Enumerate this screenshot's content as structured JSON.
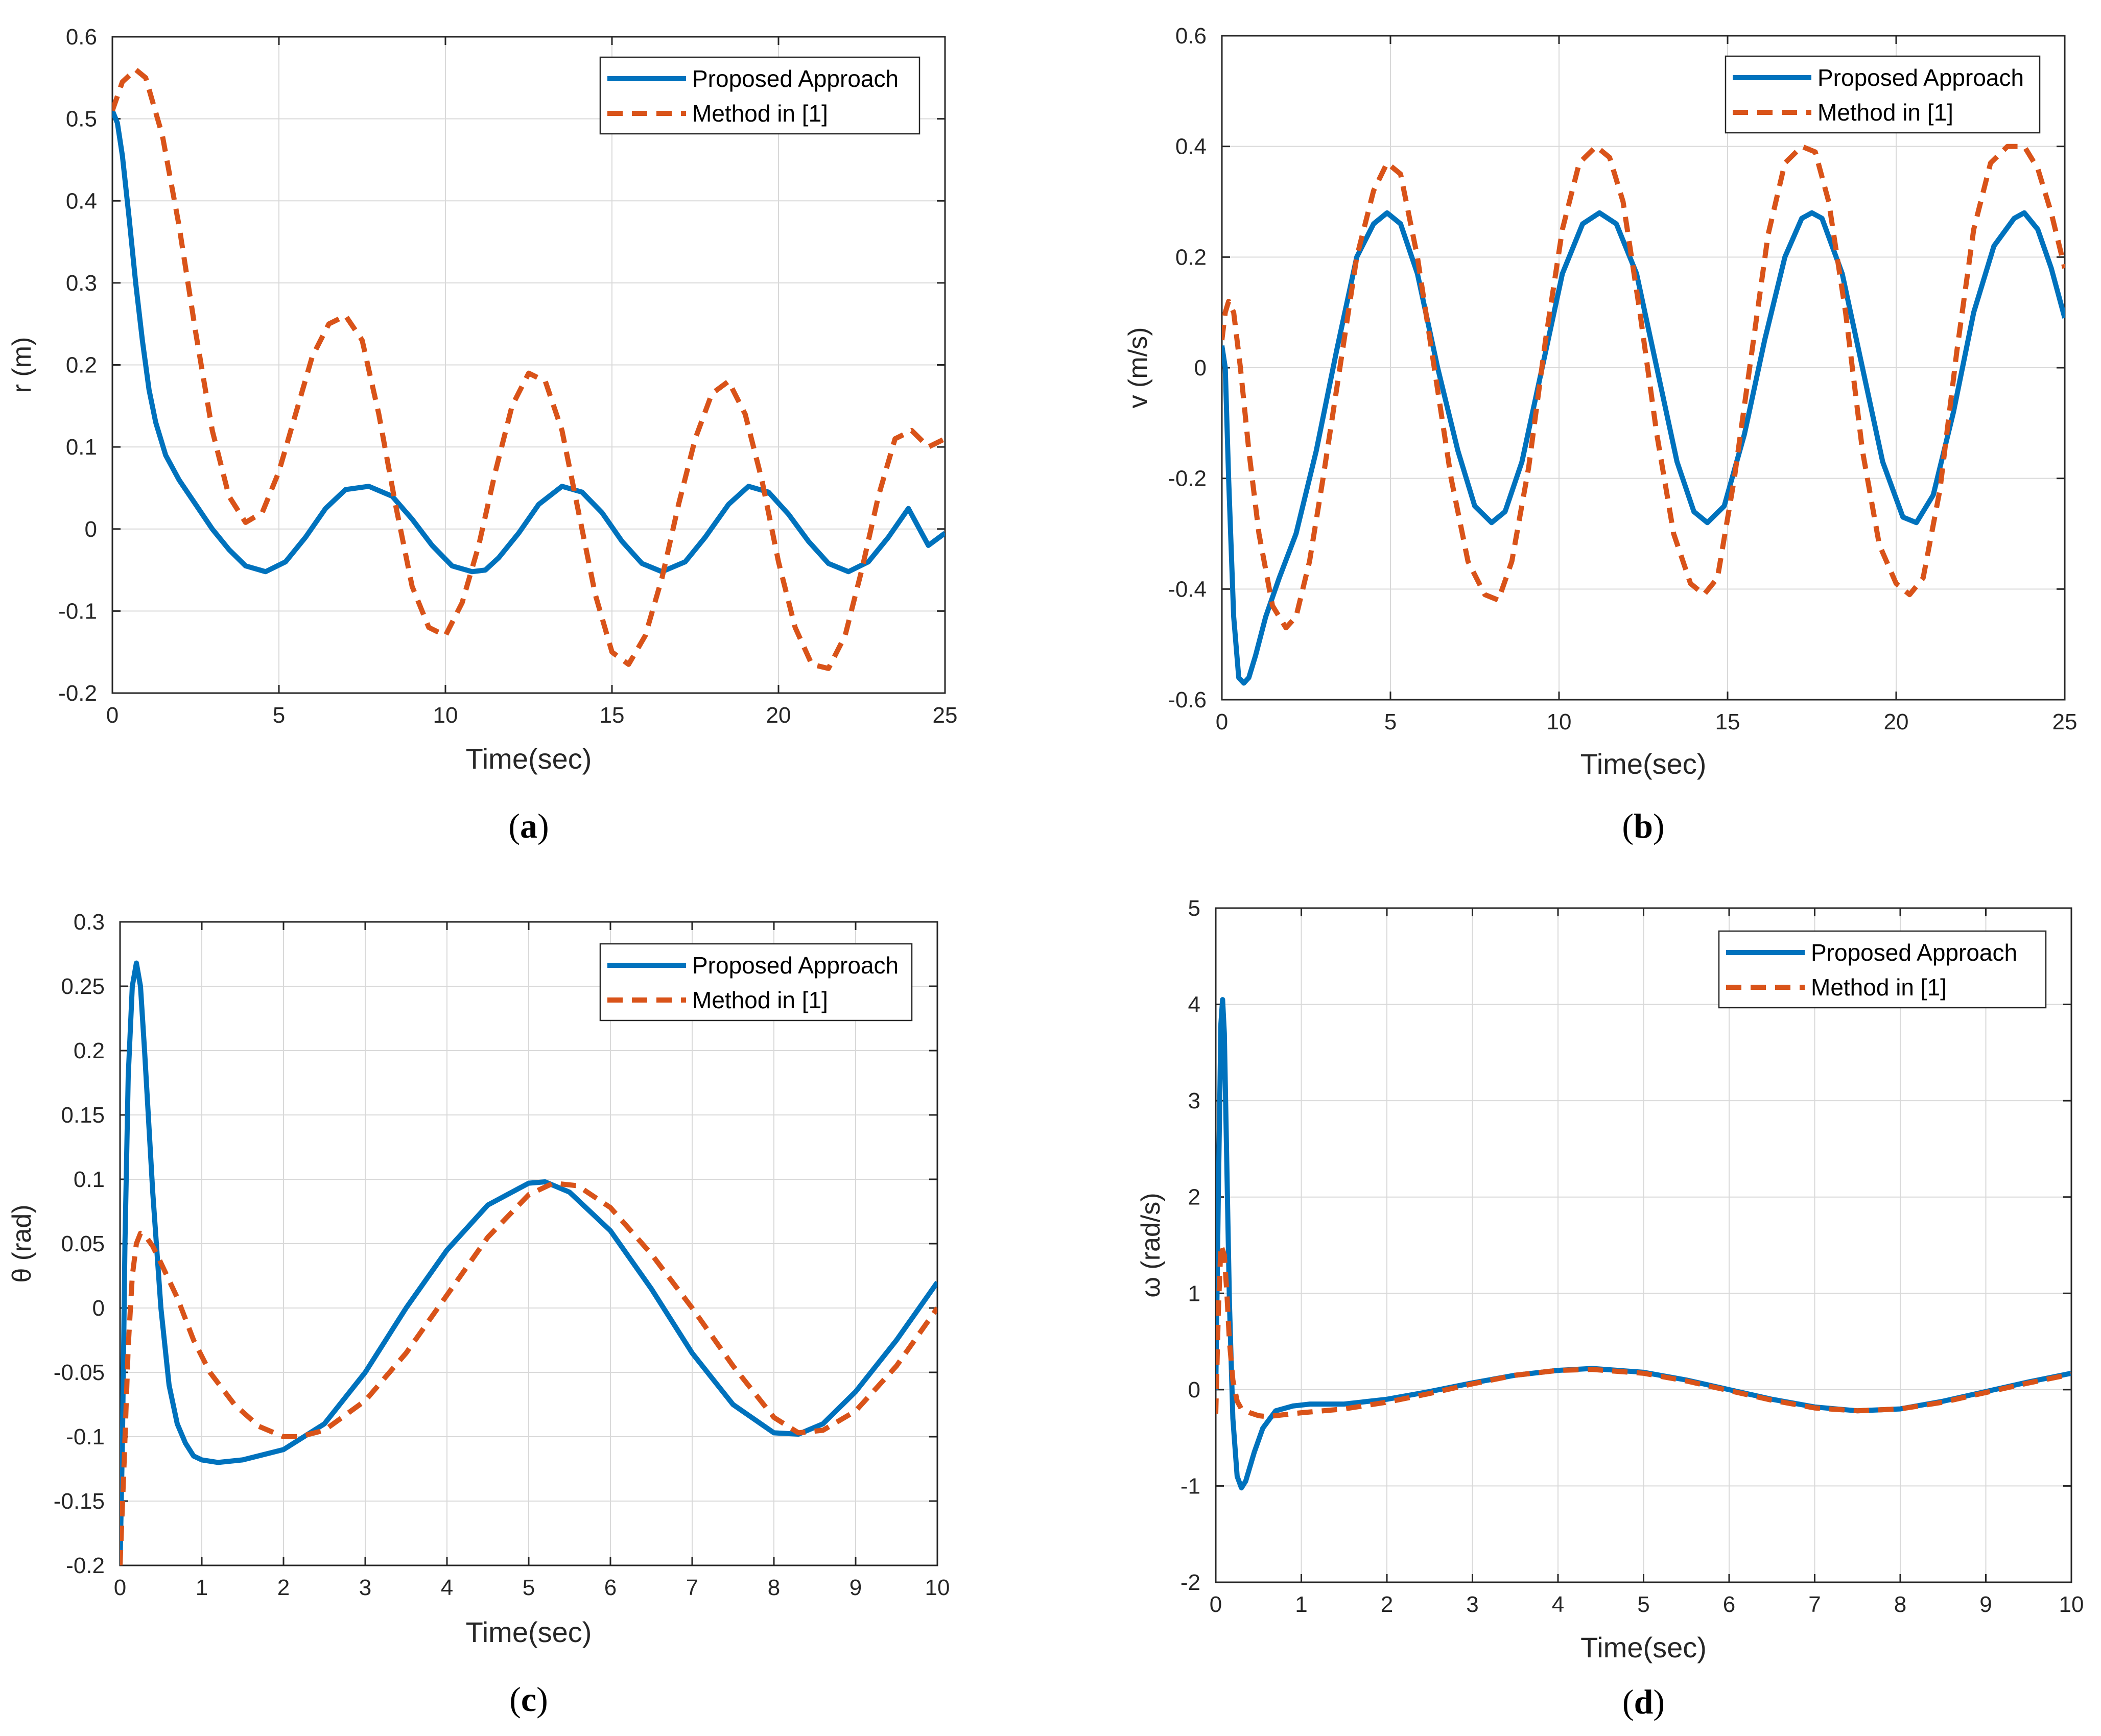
{
  "colors": {
    "proposed": "#0072BD",
    "method": "#D95319",
    "grid": "#d9d9d9",
    "axis": "#262626",
    "text": "#262626",
    "legend_border": "#262626"
  },
  "chart_data": [
    {
      "id": "a",
      "type": "line",
      "caption": "a",
      "xlabel": "Time(sec)",
      "ylabel": "r (m)",
      "xlim": [
        0,
        25
      ],
      "ylim": [
        -0.2,
        0.6
      ],
      "xticks": [
        0,
        5,
        10,
        15,
        20,
        25
      ],
      "xtick_labels": [
        "0",
        "5",
        "10",
        "15",
        "20",
        "25"
      ],
      "yticks": [
        -0.2,
        -0.1,
        0,
        0.1,
        0.2,
        0.3,
        0.4,
        0.5,
        0.6
      ],
      "ytick_labels": [
        "-0.2",
        "-0.1",
        "0",
        "0.1",
        "0.2",
        "0.3",
        "0.4",
        "0.5",
        "0.6"
      ],
      "grid": true,
      "legend": "top-right",
      "series": [
        {
          "name": "Proposed Approach",
          "style": "solid",
          "x": [
            0,
            0.15,
            0.3,
            0.5,
            0.7,
            0.9,
            1.1,
            1.3,
            1.6,
            2.0,
            2.5,
            3.0,
            3.5,
            4.0,
            4.6,
            5.2,
            5.8,
            6.4,
            7.0,
            7.7,
            8.4,
            9.0,
            9.6,
            10.2,
            10.8,
            11.2,
            11.6,
            12.2,
            12.8,
            13.5,
            14.1,
            14.7,
            15.3,
            15.9,
            16.5,
            17.2,
            17.8,
            18.5,
            19.1,
            19.7,
            20.3,
            20.9,
            21.5,
            22.1,
            22.7,
            23.3,
            23.9,
            24.5,
            25.0
          ],
          "y": [
            0.51,
            0.495,
            0.455,
            0.38,
            0.3,
            0.23,
            0.17,
            0.13,
            0.09,
            0.06,
            0.03,
            0.0,
            -0.025,
            -0.045,
            -0.052,
            -0.04,
            -0.01,
            0.025,
            0.048,
            0.052,
            0.04,
            0.012,
            -0.02,
            -0.045,
            -0.052,
            -0.05,
            -0.035,
            -0.005,
            0.03,
            0.052,
            0.045,
            0.02,
            -0.015,
            -0.042,
            -0.052,
            -0.04,
            -0.01,
            0.03,
            0.052,
            0.045,
            0.018,
            -0.015,
            -0.042,
            -0.052,
            -0.04,
            -0.01,
            0.025,
            -0.02,
            -0.005
          ]
        },
        {
          "name": "Method in [1]",
          "style": "dashed",
          "x": [
            0,
            0.3,
            0.7,
            1.0,
            1.5,
            2.0,
            2.5,
            3.0,
            3.5,
            4.0,
            4.5,
            5.0,
            5.5,
            6.0,
            6.5,
            7.0,
            7.5,
            8.0,
            8.5,
            9.0,
            9.5,
            10.0,
            10.5,
            11.0,
            11.5,
            12.0,
            12.5,
            13.0,
            13.5,
            14.0,
            14.5,
            15.0,
            15.5,
            16.0,
            16.5,
            17.0,
            17.5,
            18.0,
            18.5,
            19.0,
            19.5,
            20.0,
            20.5,
            21.0,
            21.5,
            22.0,
            22.5,
            23.0,
            23.5,
            24.0,
            24.5,
            25.0
          ],
          "y": [
            0.51,
            0.545,
            0.56,
            0.55,
            0.48,
            0.37,
            0.24,
            0.12,
            0.04,
            0.008,
            0.02,
            0.07,
            0.14,
            0.21,
            0.25,
            0.26,
            0.23,
            0.14,
            0.03,
            -0.07,
            -0.12,
            -0.13,
            -0.09,
            -0.02,
            0.07,
            0.15,
            0.19,
            0.18,
            0.12,
            0.02,
            -0.08,
            -0.15,
            -0.165,
            -0.13,
            -0.06,
            0.03,
            0.11,
            0.165,
            0.18,
            0.14,
            0.06,
            -0.04,
            -0.12,
            -0.165,
            -0.17,
            -0.13,
            -0.05,
            0.04,
            0.11,
            0.12,
            0.1,
            0.11
          ]
        }
      ]
    },
    {
      "id": "b",
      "type": "line",
      "caption": "b",
      "xlabel": "Time(sec)",
      "ylabel": "v (m/s)",
      "xlim": [
        0,
        25
      ],
      "ylim": [
        -0.6,
        0.6
      ],
      "xticks": [
        0,
        5,
        10,
        15,
        20,
        25
      ],
      "xtick_labels": [
        "0",
        "5",
        "10",
        "15",
        "20",
        "25"
      ],
      "yticks": [
        -0.6,
        -0.4,
        -0.2,
        0,
        0.2,
        0.4,
        0.6
      ],
      "ytick_labels": [
        "-0.6",
        "-0.4",
        "-0.2",
        "0",
        "0.2",
        "0.4",
        "0.6"
      ],
      "grid": true,
      "legend": "top-right",
      "series": [
        {
          "name": "Proposed Approach",
          "style": "solid",
          "x": [
            0,
            0.1,
            0.2,
            0.35,
            0.5,
            0.65,
            0.8,
            1.0,
            1.3,
            1.7,
            2.2,
            2.8,
            3.4,
            4.0,
            4.5,
            4.9,
            5.3,
            5.8,
            6.4,
            7.0,
            7.5,
            8.0,
            8.4,
            8.9,
            9.5,
            10.1,
            10.7,
            11.2,
            11.7,
            12.3,
            12.9,
            13.5,
            14.0,
            14.4,
            14.9,
            15.5,
            16.1,
            16.7,
            17.2,
            17.5,
            17.8,
            18.4,
            19.0,
            19.6,
            20.2,
            20.6,
            21.1,
            21.7,
            22.3,
            22.9,
            23.5,
            23.8,
            24.2,
            24.6,
            25.0
          ],
          "y": [
            0.04,
            0.0,
            -0.2,
            -0.45,
            -0.56,
            -0.57,
            -0.56,
            -0.52,
            -0.45,
            -0.38,
            -0.3,
            -0.15,
            0.03,
            0.2,
            0.26,
            0.28,
            0.26,
            0.17,
            0.0,
            -0.15,
            -0.25,
            -0.28,
            -0.26,
            -0.17,
            0.0,
            0.17,
            0.26,
            0.28,
            0.26,
            0.17,
            0.0,
            -0.17,
            -0.26,
            -0.28,
            -0.25,
            -0.12,
            0.05,
            0.2,
            0.27,
            0.28,
            0.27,
            0.17,
            0.0,
            -0.17,
            -0.27,
            -0.28,
            -0.23,
            -0.08,
            0.1,
            0.22,
            0.27,
            0.28,
            0.25,
            0.18,
            0.09
          ]
        },
        {
          "name": "Method in [1]",
          "style": "dashed",
          "x": [
            0,
            0.1,
            0.2,
            0.35,
            0.55,
            0.8,
            1.1,
            1.5,
            1.9,
            2.2,
            2.6,
            3.0,
            3.5,
            4.0,
            4.5,
            4.9,
            5.3,
            5.8,
            6.3,
            6.8,
            7.3,
            7.8,
            8.2,
            8.6,
            9.1,
            9.6,
            10.1,
            10.6,
            11.1,
            11.5,
            11.9,
            12.4,
            12.9,
            13.4,
            13.9,
            14.3,
            14.7,
            15.2,
            15.7,
            16.2,
            16.7,
            17.2,
            17.6,
            18.0,
            18.5,
            19.0,
            19.5,
            20.0,
            20.4,
            20.8,
            21.3,
            21.8,
            22.3,
            22.8,
            23.3,
            23.8,
            24.2,
            24.6,
            25.0
          ],
          "y": [
            0.05,
            0.1,
            0.12,
            0.1,
            0.0,
            -0.15,
            -0.3,
            -0.43,
            -0.47,
            -0.45,
            -0.35,
            -0.2,
            0.0,
            0.2,
            0.32,
            0.37,
            0.35,
            0.2,
            0.0,
            -0.2,
            -0.35,
            -0.41,
            -0.42,
            -0.35,
            -0.18,
            0.05,
            0.25,
            0.37,
            0.4,
            0.38,
            0.3,
            0.1,
            -0.12,
            -0.3,
            -0.39,
            -0.41,
            -0.38,
            -0.2,
            0.02,
            0.24,
            0.37,
            0.4,
            0.39,
            0.3,
            0.1,
            -0.15,
            -0.32,
            -0.39,
            -0.41,
            -0.38,
            -0.22,
            0.03,
            0.25,
            0.37,
            0.4,
            0.4,
            0.36,
            0.28,
            0.18
          ]
        }
      ]
    },
    {
      "id": "c",
      "type": "line",
      "caption": "c",
      "xlabel": "Time(sec)",
      "ylabel": "θ (rad)",
      "xlim": [
        0,
        10
      ],
      "ylim": [
        -0.2,
        0.3
      ],
      "xticks": [
        0,
        1,
        2,
        3,
        4,
        5,
        6,
        7,
        8,
        9,
        10
      ],
      "xtick_labels": [
        "0",
        "1",
        "2",
        "3",
        "4",
        "5",
        "6",
        "7",
        "8",
        "9",
        "10"
      ],
      "yticks": [
        -0.2,
        -0.15,
        -0.1,
        -0.05,
        0,
        0.05,
        0.1,
        0.15,
        0.2,
        0.25,
        0.3
      ],
      "ytick_labels": [
        "-0.2",
        "-0.15",
        "-0.1",
        "-0.05",
        "0",
        "0.05",
        "0.1",
        "0.15",
        "0.2",
        "0.25",
        "0.3"
      ],
      "grid": true,
      "legend": "top-right",
      "series": [
        {
          "name": "Proposed Approach",
          "style": "solid",
          "x": [
            0,
            0.03,
            0.06,
            0.1,
            0.15,
            0.2,
            0.25,
            0.3,
            0.4,
            0.5,
            0.6,
            0.7,
            0.8,
            0.9,
            1.0,
            1.2,
            1.5,
            2.0,
            2.5,
            3.0,
            3.5,
            4.0,
            4.5,
            5.0,
            5.2,
            5.5,
            6.0,
            6.5,
            7.0,
            7.5,
            8.0,
            8.3,
            8.6,
            9.0,
            9.5,
            10.0
          ],
          "y": [
            -0.2,
            -0.1,
            0.05,
            0.18,
            0.25,
            0.268,
            0.25,
            0.2,
            0.09,
            0.0,
            -0.06,
            -0.09,
            -0.105,
            -0.115,
            -0.118,
            -0.12,
            -0.118,
            -0.11,
            -0.09,
            -0.05,
            0.0,
            0.045,
            0.08,
            0.097,
            0.098,
            0.09,
            0.06,
            0.015,
            -0.035,
            -0.075,
            -0.097,
            -0.098,
            -0.09,
            -0.065,
            -0.025,
            0.02
          ]
        },
        {
          "name": "Method in [1]",
          "style": "dashed",
          "x": [
            0,
            0.05,
            0.1,
            0.15,
            0.2,
            0.25,
            0.3,
            0.4,
            0.5,
            0.7,
            0.9,
            1.1,
            1.4,
            1.7,
            2.0,
            2.2,
            2.5,
            3.0,
            3.5,
            4.0,
            4.5,
            5.0,
            5.3,
            5.6,
            6.0,
            6.5,
            7.0,
            7.5,
            8.0,
            8.3,
            8.6,
            9.0,
            9.5,
            10.0
          ],
          "y": [
            -0.2,
            -0.12,
            -0.03,
            0.025,
            0.05,
            0.058,
            0.057,
            0.048,
            0.035,
            0.008,
            -0.025,
            -0.05,
            -0.075,
            -0.092,
            -0.1,
            -0.1,
            -0.095,
            -0.072,
            -0.035,
            0.01,
            0.055,
            0.088,
            0.097,
            0.095,
            0.078,
            0.042,
            0.0,
            -0.045,
            -0.085,
            -0.097,
            -0.095,
            -0.08,
            -0.045,
            0.0
          ]
        }
      ]
    },
    {
      "id": "d",
      "type": "line",
      "caption": "d",
      "xlabel": "Time(sec)",
      "ylabel": "ω (rad/s)",
      "xlim": [
        0,
        10
      ],
      "ylim": [
        -2,
        5
      ],
      "xticks": [
        0,
        1,
        2,
        3,
        4,
        5,
        6,
        7,
        8,
        9,
        10
      ],
      "xtick_labels": [
        "0",
        "1",
        "2",
        "3",
        "4",
        "5",
        "6",
        "7",
        "8",
        "9",
        "10"
      ],
      "yticks": [
        -2,
        -1,
        0,
        1,
        2,
        3,
        4,
        5
      ],
      "ytick_labels": [
        "-2",
        "-1",
        "0",
        "1",
        "2",
        "3",
        "4",
        "5"
      ],
      "grid": true,
      "legend": "top-right",
      "series": [
        {
          "name": "Proposed Approach",
          "style": "solid",
          "x": [
            0,
            0.03,
            0.06,
            0.08,
            0.1,
            0.13,
            0.16,
            0.2,
            0.25,
            0.3,
            0.35,
            0.45,
            0.55,
            0.7,
            0.9,
            1.1,
            1.5,
            2.0,
            2.5,
            3.0,
            3.5,
            4.0,
            4.4,
            5.0,
            5.5,
            6.0,
            6.5,
            7.0,
            7.5,
            8.0,
            8.5,
            9.0,
            9.5,
            10.0
          ],
          "y": [
            0.0,
            2.0,
            3.8,
            4.05,
            3.7,
            2.3,
            0.9,
            -0.3,
            -0.9,
            -1.02,
            -0.95,
            -0.65,
            -0.4,
            -0.22,
            -0.17,
            -0.15,
            -0.15,
            -0.1,
            -0.02,
            0.07,
            0.15,
            0.2,
            0.22,
            0.18,
            0.1,
            0.0,
            -0.1,
            -0.18,
            -0.22,
            -0.2,
            -0.12,
            -0.02,
            0.08,
            0.17
          ]
        },
        {
          "name": "Method in [1]",
          "style": "dashed",
          "x": [
            0,
            0.03,
            0.06,
            0.1,
            0.13,
            0.16,
            0.2,
            0.25,
            0.3,
            0.4,
            0.5,
            0.6,
            0.8,
            1.0,
            1.5,
            2.0,
            2.5,
            3.0,
            3.5,
            4.0,
            4.4,
            5.0,
            5.5,
            6.0,
            6.5,
            7.0,
            7.5,
            8.0,
            8.5,
            9.0,
            9.5,
            10.0
          ],
          "y": [
            -0.25,
            0.8,
            1.5,
            1.4,
            1.0,
            0.5,
            0.1,
            -0.12,
            -0.2,
            -0.24,
            -0.27,
            -0.28,
            -0.26,
            -0.24,
            -0.2,
            -0.13,
            -0.04,
            0.06,
            0.15,
            0.2,
            0.21,
            0.17,
            0.09,
            -0.01,
            -0.11,
            -0.19,
            -0.22,
            -0.2,
            -0.13,
            -0.03,
            0.07,
            0.16
          ]
        }
      ]
    }
  ]
}
